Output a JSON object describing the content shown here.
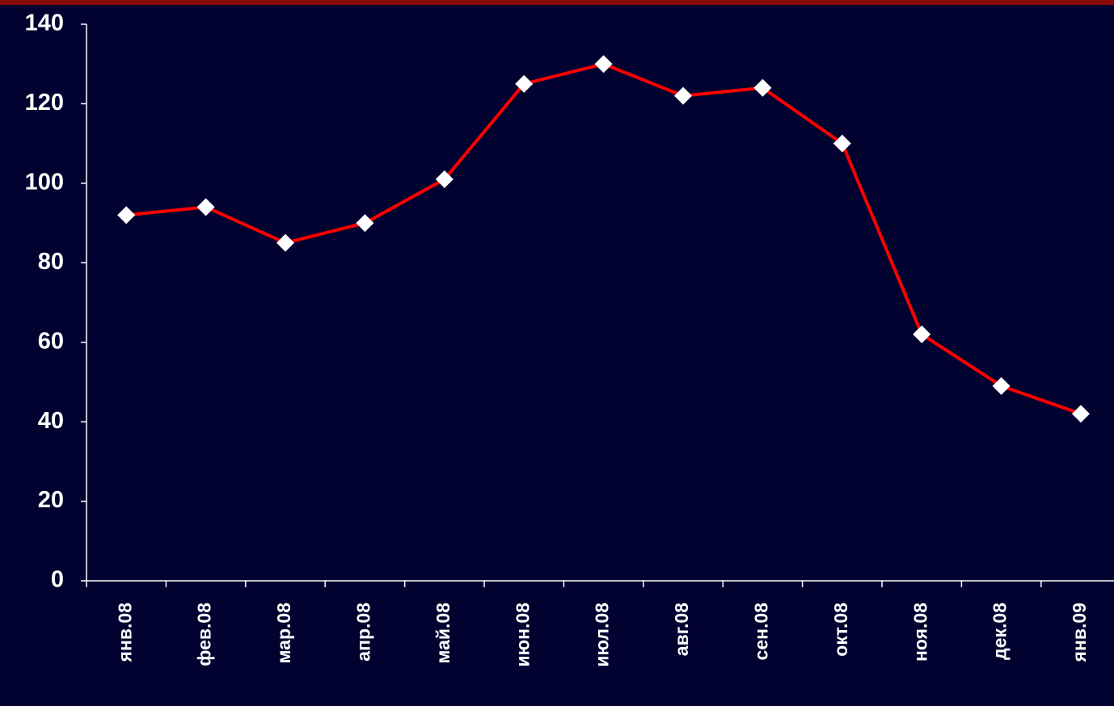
{
  "chart_data": {
    "type": "line",
    "categories": [
      "янв.08",
      "фев.08",
      "мар.08",
      "апр.08",
      "май.08",
      "июн.08",
      "июл.08",
      "авг.08",
      "сен.08",
      "окт.08",
      "ноя.08",
      "дек.08",
      "янв.09"
    ],
    "series": [
      {
        "color": "#ff0000",
        "values": [
          92,
          94,
          85,
          90,
          101,
          125,
          130,
          122,
          124,
          110,
          62,
          49,
          42
        ]
      }
    ],
    "ylim": [
      0,
      140
    ],
    "yticks": [
      0,
      20,
      40,
      60,
      80,
      100,
      120,
      140
    ],
    "grid": false
  }
}
